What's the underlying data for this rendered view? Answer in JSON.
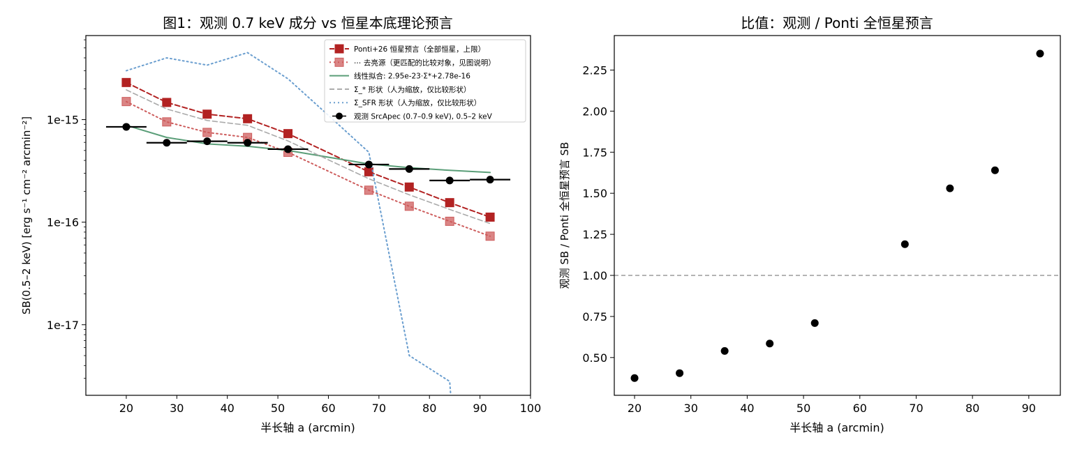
{
  "chart_data": [
    {
      "type": "line",
      "title": "图1：观测 0.7 keV 成分 vs 恒星本底理论预言",
      "xlabel": "半长轴 a (arcmin)",
      "ylabel": "SB(0.5–2 keV) [erg s⁻¹ cm⁻² arcmin⁻²]",
      "xlim": [
        12,
        100
      ],
      "ylim": [
        2.05e-18,
        6.6e-15
      ],
      "yscale": "log",
      "xticks": [
        20,
        30,
        40,
        50,
        60,
        70,
        80,
        90,
        100
      ],
      "xtick_labels": [
        "20",
        "30",
        "40",
        "50",
        "60",
        "70",
        "80",
        "90",
        "100"
      ],
      "yticks": [
        1e-17,
        1e-16,
        1e-15
      ],
      "ytick_labels": [
        "1e-17",
        "1e-16",
        "1e-15"
      ],
      "grid": false,
      "legend_position": "top-right",
      "series": [
        {
          "name": "Ponti+26 恒星预言（全部恒星，上限）",
          "style": "dashed-square",
          "color": "#b22222",
          "x": [
            20,
            28,
            36,
            44,
            52,
            68,
            76,
            84,
            92
          ],
          "y": [
            2.3e-15,
            1.47e-15,
            1.13e-15,
            1.02e-15,
            7.3e-16,
            3.1e-16,
            2.2e-16,
            1.55e-16,
            1.12e-16
          ]
        },
        {
          "name": "⋯ 去亮源（更匹配的比较对象，见图说明）",
          "style": "dotted-square",
          "color": "#cd5c5c",
          "x": [
            20,
            28,
            36,
            44,
            52,
            68,
            76,
            84,
            92
          ],
          "y": [
            1.5e-15,
            9.5e-16,
            7.5e-16,
            6.7e-16,
            4.8e-16,
            2.05e-16,
            1.43e-16,
            1.02e-16,
            7.3e-17
          ]
        },
        {
          "name": "线性拟合: 2.95e-23·Σ*+2.78e-16",
          "style": "solid",
          "color": "#5a9e78",
          "x": [
            20,
            28,
            36,
            44,
            52,
            60,
            68,
            76,
            84,
            92
          ],
          "y": [
            8.8e-16,
            6.7e-16,
            5.8e-16,
            5.5e-16,
            5e-16,
            4.3e-16,
            3.7e-16,
            3.4e-16,
            3.2e-16,
            3.05e-16
          ]
        },
        {
          "name": "Σ_* 形状（人为缩放，仅比较形状）",
          "style": "dashed",
          "color": "#aaaaaa",
          "x": [
            20,
            28,
            36,
            44,
            52,
            68,
            76,
            84,
            92
          ],
          "y": [
            1.95e-15,
            1.27e-15,
            9.8e-16,
            8.8e-16,
            6.2e-16,
            2.65e-16,
            1.85e-16,
            1.33e-16,
            9.7e-17
          ]
        },
        {
          "name": "Σ_SFR 形状（人为缩放，仅比较形状）",
          "style": "dotted",
          "color": "#6a9ecf",
          "x": [
            20,
            28,
            36,
            44,
            52,
            60,
            68,
            76,
            84,
            84.2
          ],
          "y": [
            3e-15,
            4e-15,
            3.4e-15,
            4.5e-15,
            2.5e-15,
            1.1e-15,
            4.8e-16,
            5e-18,
            2.8e-18,
            2.1e-18
          ]
        },
        {
          "name": "观测 SrcApec (0.7–0.9 keV), 0.5–2 keV",
          "style": "points-xerr",
          "color": "#000000",
          "x": [
            20,
            28,
            36,
            44,
            52,
            68,
            76,
            84,
            92
          ],
          "xerr": [
            4,
            4,
            4,
            4,
            4,
            4,
            4,
            4,
            4
          ],
          "y": [
            8.5e-16,
            5.95e-16,
            6.15e-16,
            5.95e-16,
            5.15e-16,
            3.65e-16,
            3.3e-16,
            2.55e-16,
            2.6e-16
          ]
        }
      ]
    },
    {
      "type": "scatter",
      "title": "比值：观测 / Ponti 全恒星预言",
      "xlabel": "半长轴 a (arcmin)",
      "ylabel": "观测 SB / Ponti 全恒星预言 SB",
      "xlim": [
        16.4,
        95.6
      ],
      "ylim": [
        0.27,
        2.46
      ],
      "xticks": [
        20,
        30,
        40,
        50,
        60,
        70,
        80,
        90
      ],
      "xtick_labels": [
        "20",
        "30",
        "40",
        "50",
        "60",
        "70",
        "80",
        "90"
      ],
      "yticks": [
        0.5,
        0.75,
        1.0,
        1.25,
        1.5,
        1.75,
        2.0,
        2.25
      ],
      "ytick_labels": [
        "0.50",
        "0.75",
        "1.00",
        "1.25",
        "1.50",
        "1.75",
        "2.00",
        "2.25"
      ],
      "reference_line": 1.0,
      "grid": false,
      "x": [
        20,
        28,
        36,
        44,
        52,
        68,
        76,
        84,
        92
      ],
      "y": [
        0.375,
        0.405,
        0.54,
        0.585,
        0.71,
        1.19,
        1.53,
        1.64,
        2.35
      ]
    }
  ]
}
